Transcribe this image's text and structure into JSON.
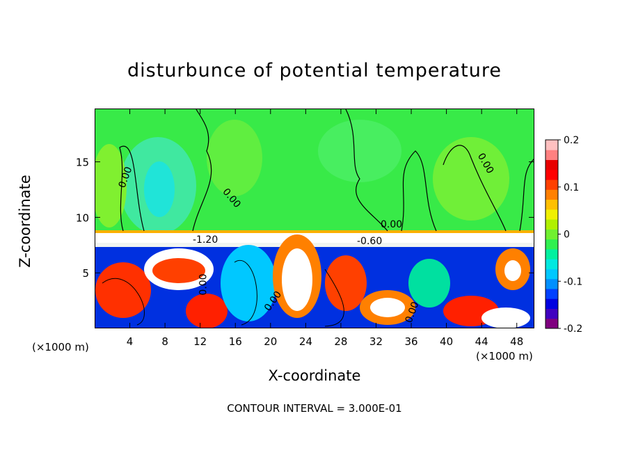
{
  "chart_data": {
    "type": "heatmap",
    "title": "disturbunce of potential temperature",
    "xlabel": "X-coordinate",
    "ylabel": "Z-coordinate",
    "x_unit_label": "(×1000 m)",
    "x_ticks": [
      4,
      8,
      12,
      16,
      20,
      24,
      28,
      32,
      36,
      40,
      44,
      48
    ],
    "y_ticks": [
      5,
      10,
      15
    ],
    "xlim": [
      0,
      50
    ],
    "ylim": [
      0,
      19.8
    ],
    "colorbar": {
      "ticks": [
        -0.2,
        -0.1,
        0,
        0.1,
        0.2
      ],
      "tick_labels": [
        "-0.2",
        "-0.1",
        "0",
        "0.1",
        "0.2"
      ],
      "range": [
        -0.2,
        0.2
      ],
      "colors": [
        "#800080",
        "#4000c0",
        "#0000e0",
        "#0040ff",
        "#0090ff",
        "#00c8ff",
        "#00e8e0",
        "#00f0a0",
        "#30f050",
        "#70f030",
        "#b0f000",
        "#f0f000",
        "#ffc000",
        "#ff8000",
        "#ff4000",
        "#ff0000",
        "#e80000",
        "#ff8080",
        "#ffc0c0"
      ]
    },
    "contour_labels": [
      "0.00",
      "0.00",
      "0.00",
      "0.00",
      "0.00",
      "0.00",
      "0.00",
      "-1.20",
      "-0.60"
    ],
    "contour_interval": "CONTOUR INTERVAL = 3.000E-01"
  }
}
